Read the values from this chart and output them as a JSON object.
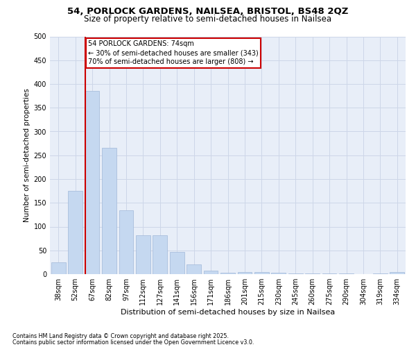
{
  "title1": "54, PORLOCK GARDENS, NAILSEA, BRISTOL, BS48 2QZ",
  "title2": "Size of property relative to semi-detached houses in Nailsea",
  "xlabel": "Distribution of semi-detached houses by size in Nailsea",
  "ylabel": "Number of semi-detached properties",
  "categories": [
    "38sqm",
    "52sqm",
    "67sqm",
    "82sqm",
    "97sqm",
    "112sqm",
    "127sqm",
    "141sqm",
    "156sqm",
    "171sqm",
    "186sqm",
    "201sqm",
    "215sqm",
    "230sqm",
    "245sqm",
    "260sqm",
    "275sqm",
    "290sqm",
    "304sqm",
    "319sqm",
    "334sqm"
  ],
  "values": [
    25,
    175,
    385,
    265,
    135,
    82,
    82,
    47,
    20,
    7,
    3,
    5,
    5,
    3,
    2,
    2,
    2,
    2,
    0,
    2,
    4
  ],
  "bar_color": "#c5d8f0",
  "bar_edge_color": "#a0b8d8",
  "vline_x": 1.575,
  "annotation_text": "54 PORLOCK GARDENS: 74sqm\n← 30% of semi-detached houses are smaller (343)\n70% of semi-detached houses are larger (808) →",
  "vline_color": "#cc0000",
  "grid_color": "#cdd6e8",
  "background_color": "#e8eef8",
  "ylim": [
    0,
    500
  ],
  "yticks": [
    0,
    50,
    100,
    150,
    200,
    250,
    300,
    350,
    400,
    450,
    500
  ],
  "footnote1": "Contains HM Land Registry data © Crown copyright and database right 2025.",
  "footnote2": "Contains public sector information licensed under the Open Government Licence v3.0.",
  "title1_fontsize": 9.5,
  "title2_fontsize": 8.5,
  "ylabel_fontsize": 7.5,
  "xlabel_fontsize": 8.0,
  "tick_fontsize": 7.0,
  "annot_fontsize": 7.0,
  "footnote_fontsize": 5.8
}
